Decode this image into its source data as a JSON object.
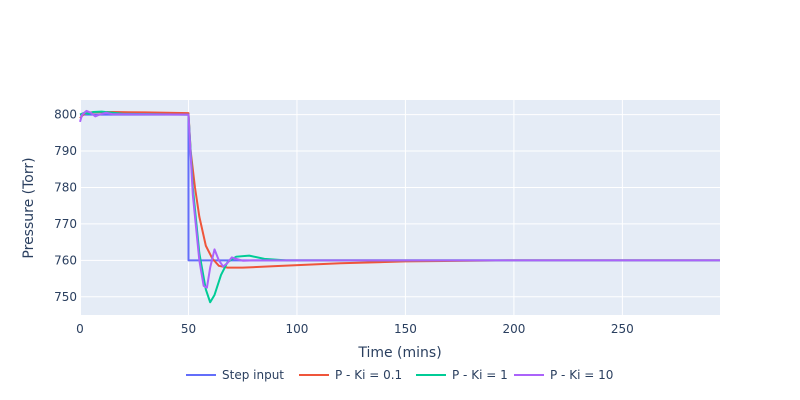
{
  "chart_data": {
    "type": "line",
    "title": "",
    "xlabel": "Time (mins)",
    "ylabel": "Pressure (Torr)",
    "xlim": [
      0,
      295
    ],
    "ylim": [
      745,
      804
    ],
    "xticks": [
      0,
      50,
      100,
      150,
      200,
      250
    ],
    "yticks": [
      750,
      760,
      770,
      780,
      790,
      800
    ],
    "grid": true,
    "legend_position": "bottom-center",
    "plot_background": "#e5ecf6",
    "series": [
      {
        "name": "Step input",
        "color": "#636efa",
        "x": [
          0,
          50,
          50.01,
          295
        ],
        "y": [
          800,
          800,
          760,
          760
        ]
      },
      {
        "name": "P - Ki = 0.1",
        "color": "#ef553b",
        "x": [
          0,
          2,
          5,
          15,
          30,
          50,
          51,
          53,
          55,
          58,
          61,
          64,
          68,
          75,
          90,
          120,
          150,
          200,
          295
        ],
        "y": [
          799,
          800.3,
          800.6,
          800.7,
          800.6,
          800.4,
          790,
          780,
          772,
          764,
          760.5,
          758.5,
          758,
          758,
          758.4,
          759.2,
          759.7,
          760,
          760
        ]
      },
      {
        "name": "P - Ki = 1",
        "color": "#00cc96",
        "x": [
          0,
          2,
          4,
          6,
          10,
          20,
          50,
          52,
          55,
          58,
          60,
          62,
          65,
          68,
          72,
          78,
          85,
          95,
          295
        ],
        "y": [
          800,
          800.5,
          800.2,
          800.7,
          800.8,
          800.2,
          800,
          780,
          762,
          752,
          748.5,
          750.5,
          756,
          759.5,
          761,
          761.3,
          760.4,
          760,
          760
        ]
      },
      {
        "name": "P - Ki = 10",
        "color": "#ab63fa",
        "x": [
          0,
          1,
          3,
          5,
          7,
          9,
          12,
          15,
          50,
          52,
          55,
          57,
          58.5,
          60,
          62,
          64,
          66,
          68,
          70,
          72,
          75,
          80,
          295
        ],
        "y": [
          798,
          800,
          801,
          800.5,
          799.5,
          800,
          800.5,
          800.1,
          800,
          778,
          760,
          753,
          752.5,
          758,
          763,
          760,
          758.3,
          759.3,
          760.8,
          760.4,
          759.9,
          760,
          760
        ]
      }
    ]
  }
}
